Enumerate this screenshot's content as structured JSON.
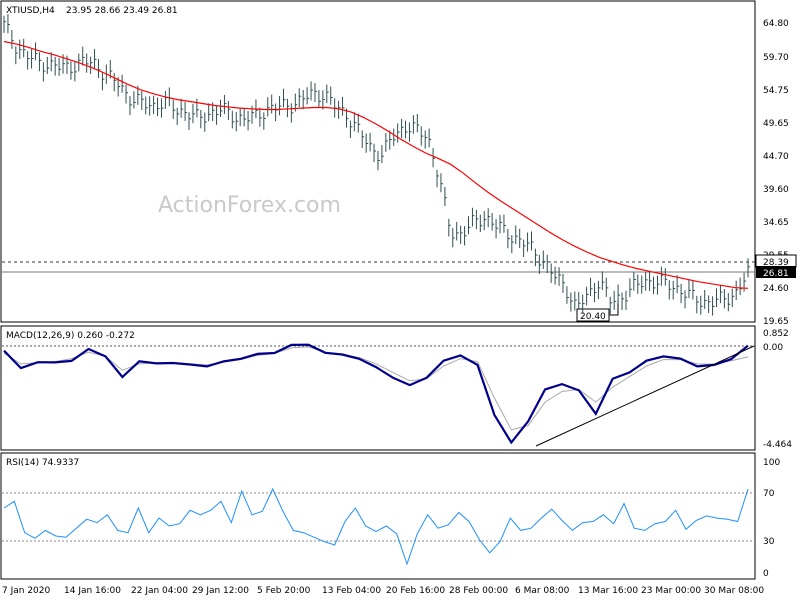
{
  "chart_data": [
    {
      "type": "line",
      "title": "XTIUSD,H4",
      "ohlc": "23.95 28.66 23.49 26.81",
      "watermark": "ActionForex.com",
      "y_ticks": [
        "64.80",
        "59.70",
        "54.75",
        "49.65",
        "44.70",
        "39.60",
        "34.65",
        "29.55",
        "24.60",
        "19.65"
      ],
      "ylim": [
        19.65,
        64.8
      ],
      "levels": [
        {
          "label": "28.39",
          "value": 28.39,
          "style": "dashed"
        },
        {
          "label": "26.81",
          "value": 26.81,
          "style": "solid"
        }
      ],
      "annotation": {
        "label": "20.40",
        "value": 20.4
      },
      "series": [
        {
          "color": "#2f4f4f",
          "values": [
            64.5,
            61.5,
            59.7,
            59.0,
            58.4,
            58.0,
            58.3,
            58.9,
            58.6,
            56.8,
            55.5,
            53.5,
            52.6,
            52.3,
            52.8,
            51.7,
            51.3,
            50.2,
            51.2,
            51.7,
            50.7,
            50.3,
            50.6,
            51.8,
            52.0,
            52.4,
            53.1,
            54.1,
            54.0,
            52.0,
            50.9,
            48.3,
            46.0,
            44.7,
            47.6,
            49.2,
            48.5,
            47.8,
            41.3,
            33.2,
            32.8,
            34.5,
            35.5,
            34.0,
            33.0,
            31.8,
            30.8,
            29.0,
            26.5,
            25.1,
            21.5,
            23.5,
            25.8,
            22.5,
            23.4,
            24.7,
            25.7,
            25.6,
            25.2,
            24.5,
            23.3,
            22.6,
            22.5,
            23.0,
            24.0,
            26.81
          ]
        },
        {
          "color": "#ff0000",
          "values": [
            62.0,
            61.6,
            61.1,
            60.5,
            60.0,
            59.4,
            58.8,
            58.1,
            57.3,
            56.4,
            55.5,
            54.7,
            54.1,
            53.6,
            53.2,
            52.9,
            52.6,
            52.3,
            52.1,
            51.9,
            51.8,
            51.7,
            51.7,
            51.8,
            51.9,
            52.0,
            52.0,
            51.8,
            51.3,
            50.5,
            49.5,
            48.4,
            47.2,
            46.1,
            45.1,
            44.3,
            43.4,
            42.1,
            40.6,
            39.2,
            37.9,
            36.7,
            35.5,
            34.3,
            33.1,
            32.0,
            31.0,
            30.1,
            29.3,
            28.7,
            28.1,
            27.6,
            27.2,
            26.8,
            26.4,
            26.0,
            25.6,
            25.3,
            25.0,
            24.7,
            24.6
          ]
        }
      ]
    },
    {
      "type": "line",
      "title": "MACD(12,26,9) 0.260 -0.272",
      "y_ticks": [
        "0.852",
        "0.00",
        "-4.464"
      ],
      "ylim": [
        -4.464,
        0.852
      ],
      "series": [
        {
          "color": "#00008b",
          "values": [
            0.02,
            -0.8,
            -0.52,
            -0.53,
            -0.46,
            0.1,
            -0.25,
            -1.22,
            -0.48,
            -0.58,
            -0.56,
            -0.63,
            -0.72,
            -0.48,
            -0.36,
            -0.13,
            -0.09,
            0.29,
            0.3,
            -0.08,
            -0.16,
            -0.36,
            -0.75,
            -1.25,
            -1.6,
            -1.25,
            -0.45,
            -0.2,
            -0.65,
            -3.0,
            -4.3,
            -3.3,
            -1.8,
            -1.55,
            -1.85,
            -2.95,
            -1.3,
            -1.0,
            -0.45,
            -0.25,
            -0.35,
            -0.72,
            -0.65,
            -0.38,
            0.26
          ]
        },
        {
          "color": "#a9a9a9",
          "values": [
            -0.1,
            -0.6,
            -0.55,
            -0.5,
            -0.35,
            -0.05,
            -0.25,
            -0.9,
            -0.6,
            -0.55,
            -0.55,
            -0.6,
            -0.65,
            -0.52,
            -0.4,
            -0.2,
            -0.1,
            0.15,
            0.2,
            -0.05,
            -0.15,
            -0.3,
            -0.6,
            -1.0,
            -1.4,
            -1.3,
            -0.7,
            -0.35,
            -0.5,
            -2.2,
            -3.7,
            -3.5,
            -2.4,
            -1.9,
            -1.8,
            -2.4,
            -1.7,
            -1.2,
            -0.7,
            -0.4,
            -0.4,
            -0.6,
            -0.62,
            -0.45,
            -0.272
          ]
        }
      ]
    },
    {
      "type": "line",
      "title": "RSI(14) 74.9337",
      "y_ticks": [
        "100",
        "70",
        "30",
        "0"
      ],
      "ylim": [
        0,
        100
      ],
      "series": [
        {
          "color": "#1e90ff",
          "values": [
            58,
            64,
            36,
            31,
            38,
            33,
            32,
            40,
            48,
            45,
            52,
            38,
            36,
            58,
            36,
            49,
            42,
            44,
            56,
            52,
            56,
            64,
            45,
            73,
            52,
            55,
            75,
            55,
            38,
            36,
            32,
            28,
            25,
            46,
            58,
            42,
            37,
            42,
            35,
            8,
            35,
            52,
            40,
            43,
            54,
            46,
            30,
            18,
            28,
            49,
            38,
            40,
            49,
            57,
            47,
            38,
            45,
            46,
            52,
            44,
            62,
            40,
            38,
            44,
            46,
            56,
            39,
            47,
            51,
            49,
            48,
            46,
            74.93
          ]
        }
      ]
    }
  ],
  "x_labels": [
    "7 Jan 2020",
    "14 Jan 16:00",
    "22 Jan 04:00",
    "29 Jan 12:00",
    "5 Feb 20:00",
    "13 Feb 04:00",
    "20 Feb 16:00",
    "28 Feb 00:00",
    "6 Mar 08:00",
    "13 Mar 16:00",
    "23 Mar 00:00",
    "30 Mar 08:00"
  ]
}
